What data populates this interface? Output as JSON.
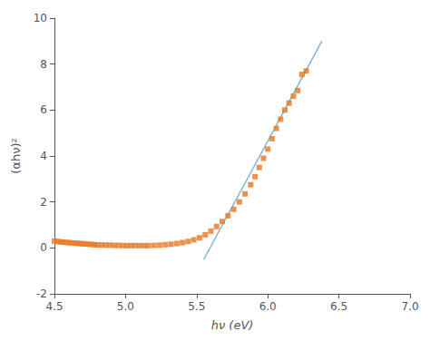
{
  "chart_data": {
    "type": "scatter",
    "title": "",
    "xlabel": "hν (eV)",
    "ylabel": "(αhν)²",
    "xlim": [
      4.5,
      7.0
    ],
    "xticks": [
      4.5,
      {
        "value": 5.0,
        "label": "5.0"
      },
      5.5,
      {
        "value": 6.0,
        "label": "6.0"
      },
      6.5,
      {
        "value": 7.0,
        "label": "7.0"
      }
    ],
    "ylim": [
      -2,
      10
    ],
    "yticks": [
      -2,
      0,
      2,
      4,
      6,
      8,
      10
    ],
    "grid": false,
    "series": [
      {
        "type": "scatter",
        "color": "#E87722",
        "marker": "square",
        "x": [
          4.5,
          4.52,
          4.54,
          4.56,
          4.58,
          4.6,
          4.62,
          4.64,
          4.66,
          4.68,
          4.7,
          4.72,
          4.74,
          4.76,
          4.78,
          4.8,
          4.83,
          4.86,
          4.89,
          4.92,
          4.95,
          4.98,
          5.01,
          5.04,
          5.07,
          5.1,
          5.13,
          5.16,
          5.2,
          5.24,
          5.28,
          5.32,
          5.36,
          5.4,
          5.44,
          5.48,
          5.52,
          5.56,
          5.6,
          5.64,
          5.68,
          5.72,
          5.76,
          5.8,
          5.84,
          5.88,
          5.91,
          5.94,
          5.97,
          6.0,
          6.03,
          6.06,
          6.09,
          6.12,
          6.15,
          6.18,
          6.21,
          6.24,
          6.27
        ],
        "values": [
          0.3,
          0.28,
          0.26,
          0.25,
          0.24,
          0.23,
          0.22,
          0.21,
          0.2,
          0.19,
          0.18,
          0.17,
          0.16,
          0.15,
          0.14,
          0.13,
          0.13,
          0.12,
          0.12,
          0.11,
          0.11,
          0.1,
          0.1,
          0.1,
          0.1,
          0.1,
          0.1,
          0.1,
          0.11,
          0.12,
          0.14,
          0.16,
          0.19,
          0.23,
          0.28,
          0.35,
          0.44,
          0.57,
          0.73,
          0.93,
          1.15,
          1.4,
          1.68,
          2.0,
          2.35,
          2.75,
          3.1,
          3.5,
          3.9,
          4.3,
          4.75,
          5.2,
          5.6,
          6.0,
          6.3,
          6.6,
          6.85,
          7.55,
          7.7
        ]
      },
      {
        "type": "line",
        "color": "#7ab8d4",
        "line_style": "solid",
        "x": [
          5.55,
          6.38
        ],
        "values": [
          -0.5,
          9.0
        ]
      }
    ]
  }
}
